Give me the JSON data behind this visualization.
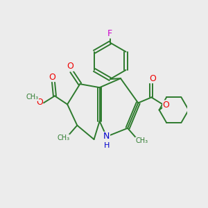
{
  "bg_color": "#ececec",
  "bond_color": "#2d7a2d",
  "O_color": "#ee0000",
  "N_color": "#0000cc",
  "F_color": "#cc00cc",
  "C_color": "#2d7a2d",
  "xlim": [
    -1.15,
    1.15
  ],
  "ylim": [
    -1.05,
    1.15
  ],
  "lw": 1.4
}
